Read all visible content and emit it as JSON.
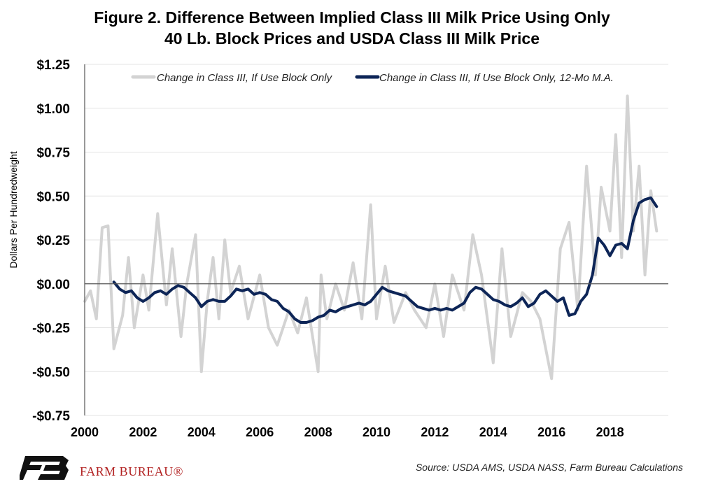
{
  "title_line1": "Figure 2. Difference Between Implied Class III Milk Price Using Only",
  "title_line2": "40 Lb. Block Prices and USDA Class III Milk Price",
  "source": "Source: USDA AMS, USDA NASS, Farm Bureau Calculations",
  "brand": "FARM BUREAU®",
  "colors": {
    "raw_series": "#d3d3d3",
    "ma_series": "#0d2557",
    "brand_red": "#b22222"
  },
  "chart_data": {
    "type": "line",
    "title": "Figure 2. Difference Between Implied Class III Milk Price Using Only 40 Lb. Block Prices and USDA Class III Milk Price",
    "xlabel": "",
    "ylabel": "Dollars Per Hundredweight",
    "xlim": [
      2000,
      2020
    ],
    "ylim": [
      -0.75,
      1.25
    ],
    "x_ticks": [
      2000,
      2002,
      2004,
      2006,
      2008,
      2010,
      2012,
      2014,
      2016,
      2018
    ],
    "x_tick_labels": [
      "2000",
      "2002",
      "2004",
      "2006",
      "2008",
      "2010",
      "2012",
      "2014",
      "2016",
      "2018"
    ],
    "y_ticks": [
      -0.75,
      -0.5,
      -0.25,
      0,
      0.25,
      0.5,
      0.75,
      1.0,
      1.25
    ],
    "y_tick_labels": [
      "-$0.75",
      "-$0.50",
      "-$0.25",
      "$0.00",
      "$0.25",
      "$0.50",
      "$0.75",
      "$1.00",
      "$1.25"
    ],
    "grid": "horizontal",
    "legend": "top",
    "series": [
      {
        "name": "Change in Class III, If Use Block Only",
        "x": [
          2000.0,
          2000.2,
          2000.4,
          2000.6,
          2000.8,
          2001.0,
          2001.3,
          2001.5,
          2001.7,
          2002.0,
          2002.2,
          2002.5,
          2002.8,
          2003.0,
          2003.3,
          2003.5,
          2003.8,
          2004.0,
          2004.2,
          2004.4,
          2004.6,
          2004.8,
          2005.0,
          2005.3,
          2005.6,
          2006.0,
          2006.3,
          2006.6,
          2007.0,
          2007.3,
          2007.6,
          2008.0,
          2008.1,
          2008.3,
          2008.6,
          2008.9,
          2009.2,
          2009.5,
          2009.8,
          2010.0,
          2010.3,
          2010.6,
          2011.0,
          2011.3,
          2011.7,
          2012.0,
          2012.3,
          2012.6,
          2013.0,
          2013.3,
          2013.6,
          2014.0,
          2014.3,
          2014.6,
          2015.0,
          2015.3,
          2015.6,
          2016.0,
          2016.3,
          2016.6,
          2016.9,
          2017.2,
          2017.5,
          2017.7,
          2018.0,
          2018.2,
          2018.4,
          2018.6,
          2018.8,
          2019.0,
          2019.2,
          2019.4,
          2019.6
        ],
        "y": [
          -0.1,
          -0.04,
          -0.2,
          0.32,
          0.33,
          -0.37,
          -0.18,
          0.15,
          -0.25,
          0.05,
          -0.15,
          0.4,
          -0.12,
          0.2,
          -0.3,
          0.0,
          0.28,
          -0.5,
          -0.1,
          0.15,
          -0.2,
          0.25,
          -0.05,
          0.1,
          -0.2,
          0.05,
          -0.25,
          -0.35,
          -0.15,
          -0.28,
          -0.08,
          -0.5,
          0.05,
          -0.2,
          0.0,
          -0.15,
          0.12,
          -0.2,
          0.45,
          -0.2,
          0.1,
          -0.22,
          -0.05,
          -0.15,
          -0.25,
          0.0,
          -0.3,
          0.05,
          -0.15,
          0.28,
          0.05,
          -0.45,
          0.2,
          -0.3,
          -0.05,
          -0.1,
          -0.2,
          -0.54,
          0.2,
          0.35,
          -0.15,
          0.67,
          0.05,
          0.55,
          0.3,
          0.85,
          0.15,
          1.07,
          0.3,
          0.67,
          0.05,
          0.53,
          0.3
        ]
      },
      {
        "name": "Change in Class III, If Use Block Only, 12-Mo M.A.",
        "x": [
          2001.0,
          2001.2,
          2001.4,
          2001.6,
          2001.8,
          2002.0,
          2002.2,
          2002.4,
          2002.6,
          2002.8,
          2003.0,
          2003.2,
          2003.4,
          2003.6,
          2003.8,
          2004.0,
          2004.2,
          2004.4,
          2004.6,
          2004.8,
          2005.0,
          2005.2,
          2005.4,
          2005.6,
          2005.8,
          2006.0,
          2006.2,
          2006.4,
          2006.6,
          2006.8,
          2007.0,
          2007.2,
          2007.4,
          2007.6,
          2007.8,
          2008.0,
          2008.2,
          2008.4,
          2008.6,
          2008.8,
          2009.0,
          2009.2,
          2009.4,
          2009.6,
          2009.8,
          2010.0,
          2010.2,
          2010.4,
          2010.6,
          2010.8,
          2011.0,
          2011.2,
          2011.4,
          2011.6,
          2011.8,
          2012.0,
          2012.2,
          2012.4,
          2012.6,
          2012.8,
          2013.0,
          2013.2,
          2013.4,
          2013.6,
          2013.8,
          2014.0,
          2014.2,
          2014.4,
          2014.6,
          2014.8,
          2015.0,
          2015.2,
          2015.4,
          2015.6,
          2015.8,
          2016.0,
          2016.2,
          2016.4,
          2016.6,
          2016.8,
          2017.0,
          2017.2,
          2017.4,
          2017.6,
          2017.8,
          2018.0,
          2018.2,
          2018.4,
          2018.6,
          2018.8,
          2019.0,
          2019.2,
          2019.4,
          2019.6
        ],
        "y": [
          0.01,
          -0.03,
          -0.05,
          -0.04,
          -0.08,
          -0.1,
          -0.08,
          -0.05,
          -0.04,
          -0.06,
          -0.03,
          -0.01,
          -0.02,
          -0.05,
          -0.08,
          -0.13,
          -0.1,
          -0.09,
          -0.1,
          -0.1,
          -0.07,
          -0.03,
          -0.04,
          -0.03,
          -0.06,
          -0.05,
          -0.06,
          -0.09,
          -0.1,
          -0.14,
          -0.16,
          -0.2,
          -0.22,
          -0.22,
          -0.21,
          -0.19,
          -0.18,
          -0.15,
          -0.16,
          -0.14,
          -0.13,
          -0.12,
          -0.11,
          -0.12,
          -0.1,
          -0.06,
          -0.02,
          -0.04,
          -0.05,
          -0.06,
          -0.07,
          -0.1,
          -0.13,
          -0.14,
          -0.15,
          -0.14,
          -0.15,
          -0.14,
          -0.15,
          -0.13,
          -0.11,
          -0.05,
          -0.02,
          -0.03,
          -0.06,
          -0.09,
          -0.1,
          -0.12,
          -0.13,
          -0.11,
          -0.08,
          -0.13,
          -0.11,
          -0.06,
          -0.04,
          -0.07,
          -0.1,
          -0.08,
          -0.18,
          -0.17,
          -0.1,
          -0.06,
          0.05,
          0.26,
          0.22,
          0.16,
          0.22,
          0.23,
          0.2,
          0.36,
          0.46,
          0.48,
          0.49,
          0.44
        ]
      }
    ]
  }
}
